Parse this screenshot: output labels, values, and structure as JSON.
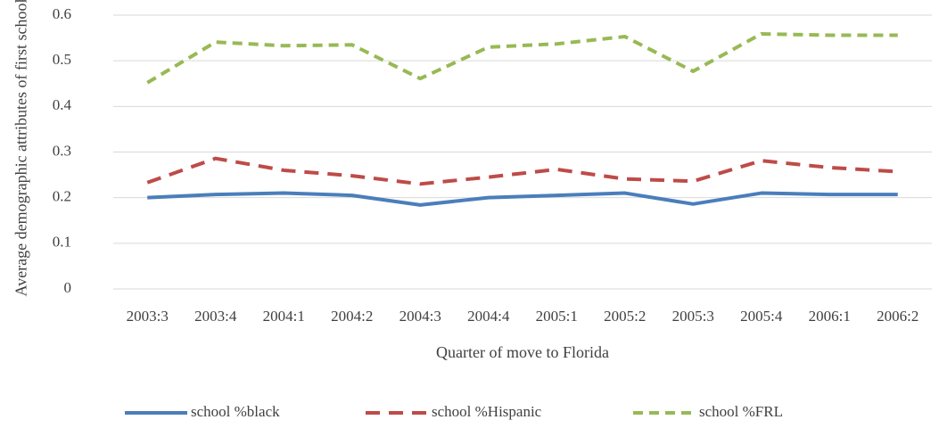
{
  "chart_data": {
    "type": "line",
    "x_label": "Quarter of move to Florida",
    "y_label": "Average demographic attributes of first school",
    "categories": [
      "2003:3",
      "2003:4",
      "2004:1",
      "2004:2",
      "2004:3",
      "2004:4",
      "2005:1",
      "2005:2",
      "2005:3",
      "2005:4",
      "2006:1",
      "2006:2"
    ],
    "series": [
      {
        "name": "school %black",
        "color": "#4a7ebb",
        "dash": "solid",
        "values": [
          0.2,
          0.207,
          0.21,
          0.205,
          0.184,
          0.2,
          0.205,
          0.21,
          0.186,
          0.21,
          0.207,
          0.207
        ]
      },
      {
        "name": "school %Hispanic",
        "color": "#be4b48",
        "dash": "dashed",
        "values": [
          0.233,
          0.286,
          0.26,
          0.248,
          0.23,
          0.245,
          0.262,
          0.241,
          0.236,
          0.281,
          0.266,
          0.257
        ]
      },
      {
        "name": "school %FRL",
        "color": "#98b954",
        "dash": "short-dashed",
        "values": [
          0.452,
          0.541,
          0.533,
          0.535,
          0.461,
          0.53,
          0.537,
          0.553,
          0.477,
          0.559,
          0.556,
          0.556
        ]
      }
    ],
    "ylim": [
      0,
      0.6
    ],
    "yticks": [
      0,
      0.1,
      0.2,
      0.3,
      0.4,
      0.5,
      0.6
    ],
    "grid": true,
    "legend": "bottom"
  }
}
